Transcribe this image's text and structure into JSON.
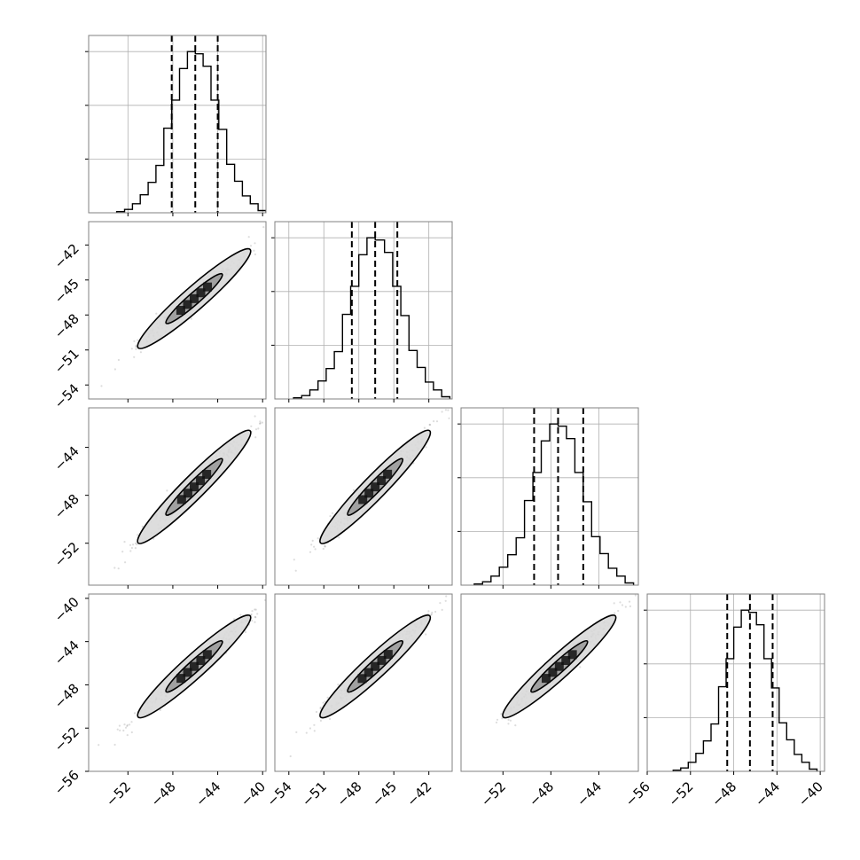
{
  "chart_data": {
    "type": "corner",
    "n_params": 4,
    "diagonal_ticks": [
      [
        -52,
        -48,
        -44,
        -40
      ],
      [
        -54,
        -51,
        -48,
        -45,
        -42
      ],
      [
        -52,
        -48,
        -44
      ],
      [
        -56,
        -52,
        -48,
        -44,
        -40
      ]
    ],
    "vertical_axis_ticks": [
      [],
      [
        "-42",
        "-45",
        "-48",
        "-51",
        "-54"
      ],
      [
        "-44",
        "-48",
        "-52"
      ],
      [
        "-40",
        "-44",
        "-48",
        "-52",
        "-56"
      ]
    ],
    "bottom_axis_ticks": [
      [
        "-52",
        "-48",
        "-44",
        "-40"
      ],
      [
        "-54",
        "-51",
        "-48",
        "-45",
        "-42"
      ],
      [
        "-52",
        "-48",
        "-44"
      ],
      [
        "-56",
        "-52",
        "-48",
        "-44",
        "-40"
      ]
    ],
    "axis_ranges": [
      [
        -55.5,
        -39.7
      ],
      [
        -55.2,
        -40.0
      ],
      [
        -55.5,
        -40.7
      ],
      [
        -56.0,
        -39.6
      ]
    ],
    "histograms": [
      {
        "bins": [
          -53.0,
          -52.3,
          -51.6,
          -50.9,
          -50.2,
          -49.5,
          -48.8,
          -48.1,
          -47.4,
          -46.7,
          -46.0,
          -45.3,
          -44.6,
          -43.9,
          -43.2,
          -42.5,
          -41.8,
          -41.1,
          -40.4,
          -39.7
        ],
        "counts": [
          1,
          3,
          8,
          16,
          27,
          42,
          75,
          100,
          128,
          143,
          141,
          130,
          100,
          74,
          43,
          28,
          15,
          8,
          2
        ],
        "quantiles": [
          -48.1,
          -46.0,
          -44.0
        ]
      },
      {
        "bins": [
          -53.6,
          -52.9,
          -52.2,
          -51.5,
          -50.8,
          -50.1,
          -49.4,
          -48.7,
          -48.0,
          -47.3,
          -46.6,
          -45.8,
          -45.1,
          -44.4,
          -43.7,
          -43.0,
          -42.3,
          -41.6,
          -40.9,
          -40.2
        ],
        "counts": [
          1,
          3,
          8,
          16,
          27,
          42,
          75,
          100,
          128,
          143,
          141,
          130,
          100,
          74,
          43,
          28,
          15,
          8,
          2
        ],
        "quantiles": [
          -48.6,
          -46.6,
          -44.7
        ]
      },
      {
        "bins": [
          -54.4,
          -53.7,
          -53.0,
          -52.3,
          -51.6,
          -50.9,
          -50.2,
          -49.5,
          -48.8,
          -48.1,
          -47.4,
          -46.7,
          -46.0,
          -45.3,
          -44.6,
          -43.9,
          -43.2,
          -42.5,
          -41.8,
          -41.1
        ],
        "counts": [
          1,
          3,
          8,
          16,
          27,
          42,
          75,
          100,
          128,
          143,
          141,
          130,
          100,
          74,
          43,
          28,
          15,
          8,
          2
        ],
        "quantiles": [
          -49.4,
          -47.4,
          -45.3
        ]
      },
      {
        "bins": [
          -53.6,
          -52.9,
          -52.2,
          -51.5,
          -50.8,
          -50.1,
          -49.4,
          -48.7,
          -48.0,
          -47.3,
          -46.6,
          -45.9,
          -45.2,
          -44.5,
          -43.8,
          -43.1,
          -42.4,
          -41.7,
          -41.0,
          -40.3
        ],
        "counts": [
          1,
          3,
          8,
          16,
          27,
          42,
          75,
          100,
          128,
          143,
          141,
          130,
          100,
          74,
          43,
          28,
          15,
          8,
          2
        ],
        "quantiles": [
          -48.6,
          -46.5,
          -44.4
        ]
      }
    ],
    "pairs": [
      {
        "row": 1,
        "col": 0,
        "center": [
          -46.1,
          -46.6
        ],
        "spread": [
          3.2,
          2.7
        ],
        "width": 0.5,
        "contours": [
          1.0,
          2.0
        ]
      },
      {
        "row": 2,
        "col": 0,
        "center": [
          -46.1,
          -47.3
        ],
        "spread": [
          3.2,
          3.0
        ],
        "width": 0.5,
        "contours": [
          1.0,
          2.0
        ]
      },
      {
        "row": 3,
        "col": 0,
        "center": [
          -46.1,
          -46.3
        ],
        "spread": [
          3.2,
          3.0
        ],
        "width": 0.5,
        "contours": [
          1.0,
          2.0
        ]
      },
      {
        "row": 2,
        "col": 1,
        "center": [
          -46.6,
          -47.3
        ],
        "spread": [
          3.0,
          3.0
        ],
        "width": 0.5,
        "contours": [
          1.0,
          2.0
        ]
      },
      {
        "row": 3,
        "col": 1,
        "center": [
          -46.6,
          -46.3
        ],
        "spread": [
          3.0,
          3.0
        ],
        "width": 0.5,
        "contours": [
          1.0,
          2.0
        ]
      },
      {
        "row": 3,
        "col": 2,
        "center": [
          -47.3,
          -46.3
        ],
        "spread": [
          3.0,
          3.0
        ],
        "width": 0.5,
        "contours": [
          1.0,
          2.0
        ]
      }
    ],
    "grid": true,
    "style": {
      "line": "#000000",
      "grid": "#b0b0b0",
      "points": "#444444",
      "frame": "#808080"
    }
  }
}
